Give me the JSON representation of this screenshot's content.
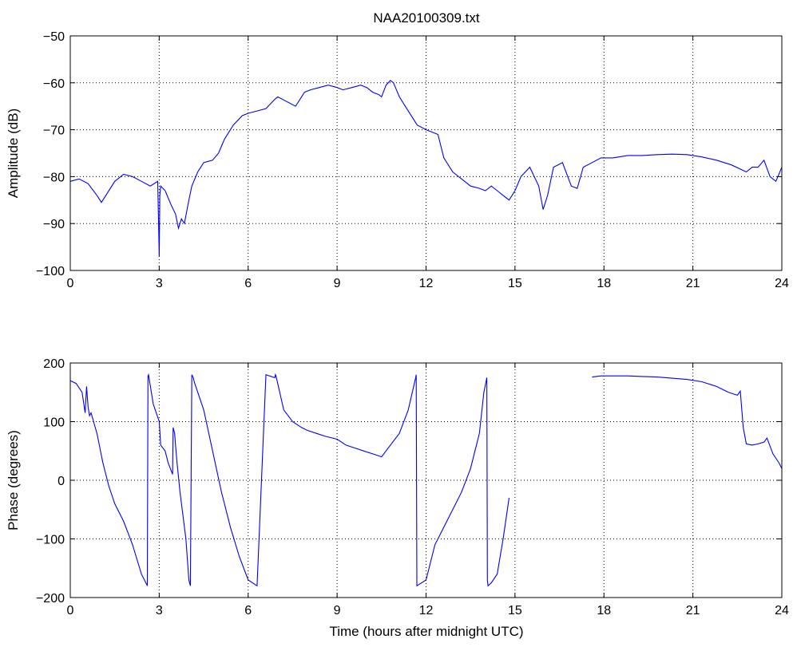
{
  "figure": {
    "title": "NAA20100309.txt",
    "xlabel": "Time (hours after midnight UTC)"
  },
  "colors": {
    "line": "#0000ff",
    "axis": "#000000",
    "grid": "#000000",
    "background": "#ffffff"
  },
  "chart_data": [
    {
      "type": "line",
      "panel": "top",
      "title": "NAA20100309.txt",
      "xlabel": "",
      "ylabel": "Amplitude (dB)",
      "xlim": [
        0,
        24
      ],
      "ylim": [
        -100,
        -50
      ],
      "xticks": [
        0,
        3,
        6,
        9,
        12,
        15,
        18,
        21,
        24
      ],
      "yticks": [
        -100,
        -90,
        -80,
        -70,
        -60,
        -50
      ],
      "grid": true,
      "series": [
        {
          "color": "#0000ff",
          "x": [
            0,
            0.3,
            0.6,
            0.9,
            1.05,
            1.2,
            1.5,
            1.8,
            2.1,
            2.4,
            2.7,
            2.95,
            3.0,
            3.02,
            3.05,
            3.2,
            3.4,
            3.55,
            3.65,
            3.75,
            3.85,
            4.0,
            4.1,
            4.3,
            4.5,
            4.8,
            5.0,
            5.2,
            5.5,
            5.8,
            6.0,
            6.3,
            6.6,
            6.9,
            7.0,
            7.3,
            7.6,
            7.9,
            8.1,
            8.4,
            8.7,
            9.0,
            9.2,
            9.5,
            9.8,
            10.0,
            10.2,
            10.4,
            10.5,
            10.65,
            10.8,
            10.9,
            11.1,
            11.4,
            11.7,
            12.0,
            12.2,
            12.4,
            12.6,
            12.9,
            13.2,
            13.5,
            13.8,
            14.0,
            14.2,
            14.4,
            14.6,
            14.8,
            15.0,
            15.2,
            15.5,
            15.8,
            15.95,
            16.1,
            16.3,
            16.6,
            16.9,
            17.1,
            17.3,
            17.6,
            17.9,
            18.3,
            18.8,
            19.3,
            19.8,
            20.3,
            20.8,
            21.3,
            21.8,
            22.3,
            22.8,
            23.0,
            23.2,
            23.4,
            23.6,
            23.8,
            24.0
          ],
          "y": [
            -81,
            -80.5,
            -81.5,
            -84,
            -85.5,
            -84,
            -81,
            -79.5,
            -80,
            -81,
            -82,
            -81,
            -97,
            -84,
            -82,
            -83,
            -86,
            -88,
            -91,
            -89,
            -90,
            -85,
            -82,
            -79,
            -77,
            -76.5,
            -75,
            -72,
            -69,
            -67,
            -66.5,
            -66,
            -65.5,
            -63.5,
            -63,
            -64,
            -65,
            -62,
            -61.5,
            -61,
            -60.5,
            -61,
            -61.5,
            -61,
            -60.5,
            -61,
            -62,
            -62.5,
            -63,
            -60.5,
            -59.5,
            -60,
            -63,
            -66,
            -69,
            -70,
            -70.5,
            -71,
            -76,
            -79,
            -80.5,
            -82,
            -82.5,
            -83,
            -82,
            -83,
            -84,
            -85,
            -83,
            -80,
            -78,
            -82,
            -87,
            -84,
            -78,
            -77,
            -82,
            -82.5,
            -78,
            -77,
            -76,
            -76,
            -75.5,
            -75.5,
            -75.3,
            -75.2,
            -75.3,
            -75.8,
            -76.5,
            -77.5,
            -79,
            -78,
            -78,
            -76.5,
            -80,
            -81,
            -78
          ]
        }
      ]
    },
    {
      "type": "line",
      "panel": "bottom",
      "xlabel": "Time (hours after midnight UTC)",
      "ylabel": "Phase (degrees)",
      "xlim": [
        0,
        24
      ],
      "ylim": [
        -200,
        200
      ],
      "xticks": [
        0,
        3,
        6,
        9,
        12,
        15,
        18,
        21,
        24
      ],
      "yticks": [
        -200,
        -100,
        0,
        100,
        200
      ],
      "grid": true,
      "series": [
        {
          "color": "#0000ff",
          "x": [
            0,
            0.2,
            0.4,
            0.5,
            0.55,
            0.6,
            0.65,
            0.7,
            0.9,
            1.1,
            1.3,
            1.5,
            1.8,
            2.1,
            2.4,
            2.6,
            2.62,
            2.64,
            2.8,
            3.0,
            3.05,
            3.2,
            3.3,
            3.45,
            3.47,
            3.52,
            3.55,
            3.6,
            3.7,
            3.8,
            3.9,
            4.0,
            4.05,
            4.1,
            4.15,
            4.17,
            4.2,
            4.5,
            4.8,
            5.1,
            5.4,
            5.7,
            6.0,
            6.3,
            6.6,
            6.9,
            6.92,
            6.94,
            7.2,
            7.5,
            7.8,
            8.0,
            8.3,
            8.6,
            9.0,
            9.3,
            9.6,
            9.9,
            10.2,
            10.5,
            10.8,
            11.1,
            11.4,
            11.65,
            11.67,
            11.69,
            12.0,
            12.3,
            12.6,
            12.9,
            13.2,
            13.5,
            13.8,
            13.95,
            14.05,
            14.07,
            14.09,
            14.2,
            14.4,
            14.6,
            14.8
          ],
          "y": [
            170,
            165,
            150,
            115,
            160,
            125,
            110,
            115,
            80,
            30,
            -10,
            -40,
            -70,
            -110,
            -160,
            -180,
            178,
            180,
            130,
            100,
            60,
            50,
            30,
            10,
            90,
            80,
            60,
            30,
            -20,
            -60,
            -100,
            -170,
            -180,
            180,
            175,
            170,
            165,
            120,
            50,
            -20,
            -80,
            -130,
            -170,
            -180,
            180,
            175,
            180,
            178,
            120,
            100,
            90,
            85,
            80,
            75,
            70,
            60,
            55,
            50,
            45,
            40,
            60,
            80,
            120,
            175,
            180,
            -180,
            -170,
            -110,
            -80,
            -50,
            -20,
            20,
            80,
            150,
            175,
            -170,
            -180,
            -175,
            -160,
            -100,
            -30
          ]
        },
        {
          "color": "#0000ff",
          "x": [
            17.6,
            17.9,
            18.3,
            18.8,
            19.3,
            19.8,
            20.3,
            20.8,
            21.3,
            21.8,
            22.2,
            22.5,
            22.6,
            22.65,
            22.7,
            22.8,
            23.0,
            23.2,
            23.4,
            23.5,
            23.7,
            23.9,
            24.0
          ],
          "y": [
            176,
            178,
            178,
            178,
            177,
            176,
            174,
            172,
            168,
            160,
            150,
            145,
            152,
            120,
            90,
            62,
            60,
            62,
            65,
            72,
            45,
            30,
            20
          ]
        }
      ]
    }
  ]
}
